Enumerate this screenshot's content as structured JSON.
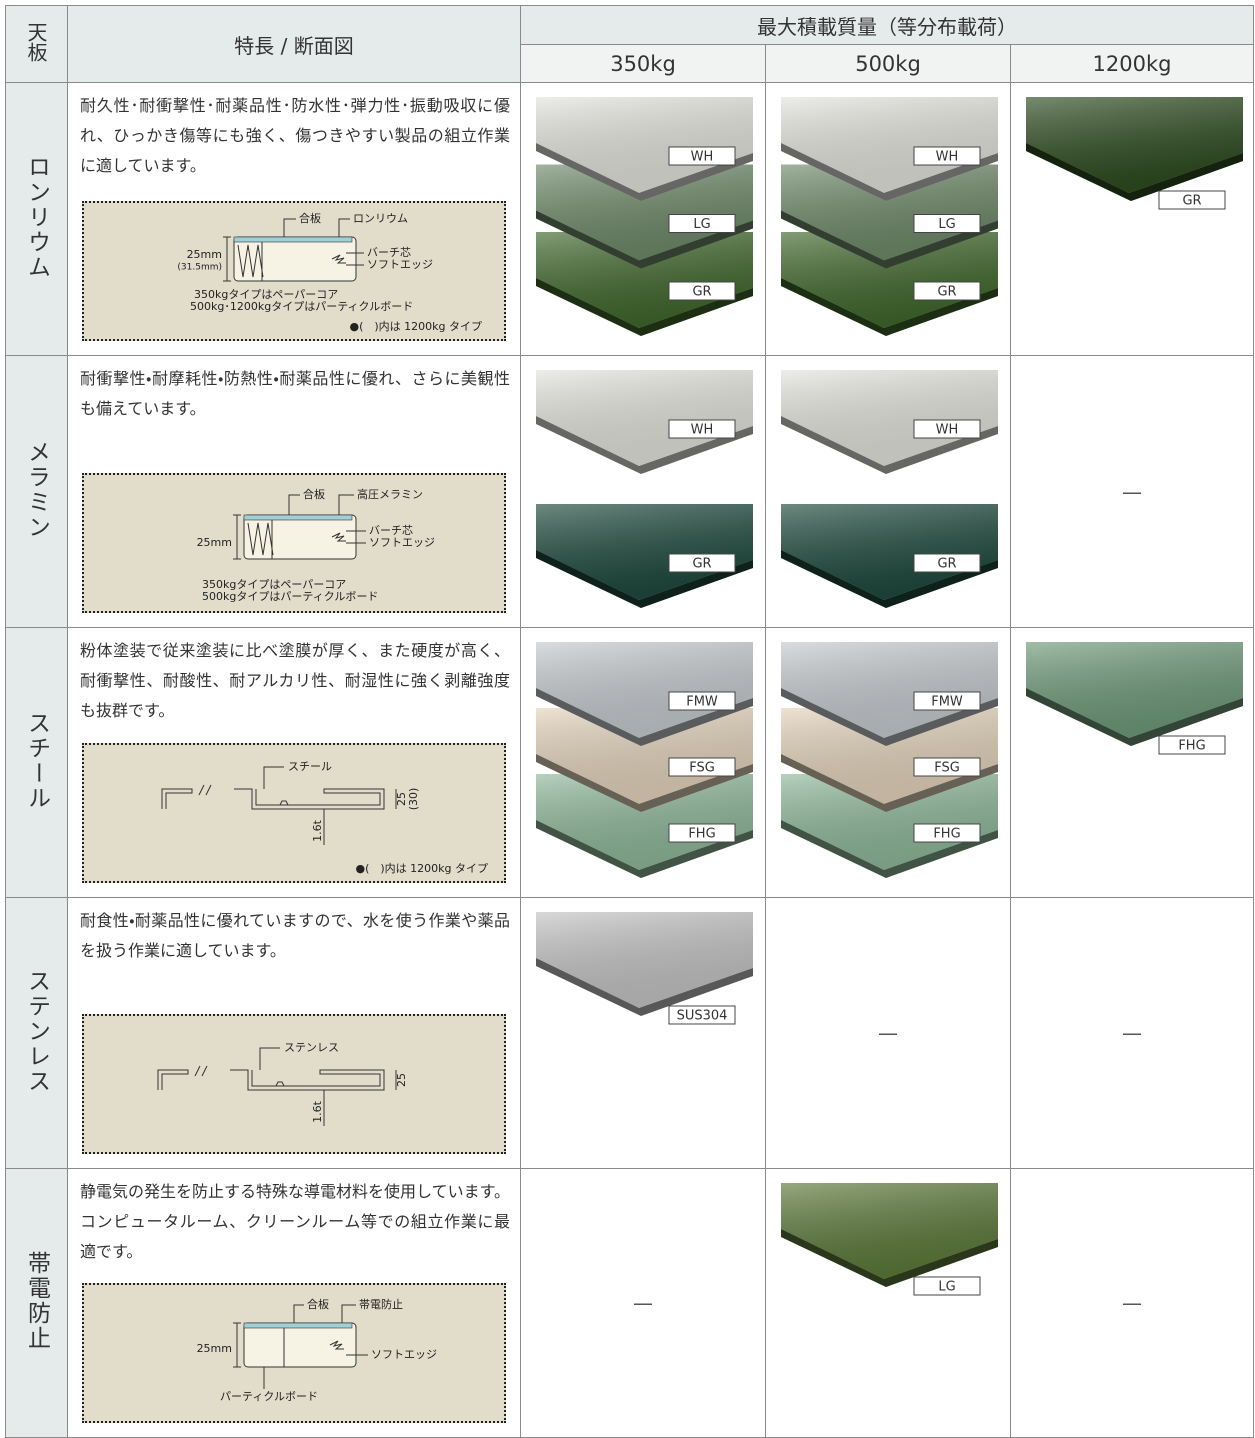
{
  "header": {
    "top_left": "天板",
    "feature": "特長 / 断面図",
    "capacity": "最大積載質量（等分布載荷）",
    "loads": [
      "350kg",
      "500kg",
      "1200kg"
    ]
  },
  "rows": [
    {
      "name": "ロンリウム",
      "description": "耐久性･耐衝撃性･耐薬品性･防水性･弾力性･振動吸収に優れ、ひっかき傷等にも強く、傷つきやすい製品の組立作業に適しています。",
      "diagram": {
        "labels": [
          "合板",
          "ロンリウム",
          "バーチ芯",
          "ソフトエッジ",
          "25mm",
          "(31.5mm)",
          "350kgタイプはペーパーコア",
          "500kg･1200kgタイプはパーティクルボード",
          "●(　)内は 1200kg タイプ"
        ]
      },
      "cells": [
        {
          "swatches": [
            {
              "label": "WH",
              "color": "#e3e3dd"
            },
            {
              "label": "LG",
              "color": "#6f8a6a"
            },
            {
              "label": "GR",
              "color": "#40682c"
            }
          ]
        },
        {
          "swatches": [
            {
              "label": "WH",
              "color": "#e3e3dd"
            },
            {
              "label": "LG",
              "color": "#6f8a6a"
            },
            {
              "label": "GR",
              "color": "#40682c"
            }
          ]
        },
        {
          "swatches": [
            {
              "label": "GR",
              "color": "#2e4c20"
            }
          ]
        }
      ]
    },
    {
      "name": "メラミン",
      "description": "耐衝撃性・耐摩耗性・防熱性・耐薬品性に優れ、さらに美観性も備えています。",
      "diagram": {
        "labels": [
          "合板",
          "高圧メラミン",
          "バーチ芯",
          "ソフトエッジ",
          "25mm",
          "350kgタイプはペーパーコア",
          "500kgタイプはパーティクルボード"
        ]
      },
      "cells": [
        {
          "swatches": [
            {
              "label": "WH",
              "color": "#e3e3dd"
            },
            {
              "label": "GR",
              "color": "#1f4a3d"
            }
          ]
        },
        {
          "swatches": [
            {
              "label": "WH",
              "color": "#e3e3dd"
            },
            {
              "label": "GR",
              "color": "#1f4a3d"
            }
          ]
        },
        {
          "text": "—"
        }
      ]
    },
    {
      "name": "スチール",
      "description": "粉体塗装で従来塗装に比べ塗膜が厚く、また硬度が高く、耐衝撃性、耐酸性、耐アルカリ性、耐湿性に強く剥離強度も抜群です。",
      "diagram": {
        "labels": [
          "スチール",
          "25",
          "(30)",
          "1.6t",
          "●(　)内は 1200kg タイプ"
        ]
      },
      "cells": [
        {
          "swatches": [
            {
              "label": "FMW",
              "color": "#c6cbcf"
            },
            {
              "label": "FSG",
              "color": "#e4d4bc"
            },
            {
              "label": "FHG",
              "color": "#8fb89a"
            }
          ]
        },
        {
          "swatches": [
            {
              "label": "FMW",
              "color": "#c6cbcf"
            },
            {
              "label": "FSG",
              "color": "#e4d4bc"
            },
            {
              "label": "FHG",
              "color": "#8fb89a"
            }
          ]
        },
        {
          "swatches": [
            {
              "label": "FHG",
              "color": "#6f9a7a"
            }
          ]
        }
      ]
    },
    {
      "name": "ステンレス",
      "description": "耐食性・耐薬品性に優れていますので、水を使う作業や薬品を扱う作業に適しています。",
      "diagram": {
        "labels": [
          "ステンレス",
          "25",
          "1.6t"
        ]
      },
      "cells": [
        {
          "swatches": [
            {
              "label": "SUS304",
              "color": "#c4c4c4"
            }
          ]
        },
        {
          "text": "—"
        },
        {
          "text": "—"
        }
      ]
    },
    {
      "name": "帯電防止",
      "description": "静電気の発生を防止する特殊な導電材料を使用しています。コンピュータルーム、クリーンルーム等での組立作業に最適です。",
      "diagram": {
        "labels": [
          "合板",
          "帯電防止",
          "ソフトエッジ",
          "25mm",
          "パーティクルボード"
        ]
      },
      "cells": [
        {
          "text": "—"
        },
        {
          "swatches": [
            {
              "label": "LG",
              "color": "#5d7a3a"
            }
          ]
        },
        {
          "text": "—"
        }
      ]
    }
  ]
}
